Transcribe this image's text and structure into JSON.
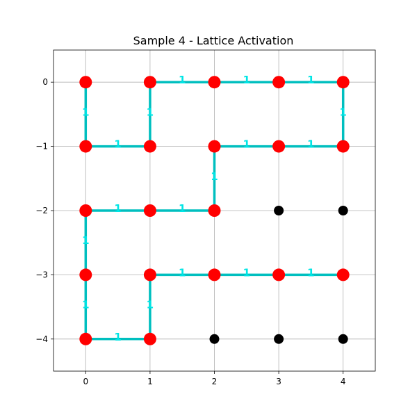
{
  "title": "Sample 4 - Lattice Activation",
  "x_ticks": [
    "0",
    "1",
    "2",
    "3",
    "4"
  ],
  "y_ticks": [
    "0",
    "−1",
    "−2",
    "−3",
    "−4"
  ],
  "x_tick_values": [
    0,
    1,
    2,
    3,
    4
  ],
  "y_tick_values": [
    0,
    -1,
    -2,
    -3,
    -4
  ],
  "xlim": [
    -0.5,
    4.5
  ],
  "ylim": [
    -4.5,
    0.5
  ],
  "grid": true,
  "colors": {
    "active_node": "#ff0000",
    "inactive_node": "#000000",
    "edge": "#00bfbf",
    "edge_label": "#00e5e5"
  },
  "nodes": [
    {
      "x": 0,
      "y": 0,
      "active": true
    },
    {
      "x": 1,
      "y": 0,
      "active": true
    },
    {
      "x": 2,
      "y": 0,
      "active": true
    },
    {
      "x": 3,
      "y": 0,
      "active": true
    },
    {
      "x": 4,
      "y": 0,
      "active": true
    },
    {
      "x": 0,
      "y": -1,
      "active": true
    },
    {
      "x": 1,
      "y": -1,
      "active": true
    },
    {
      "x": 2,
      "y": -1,
      "active": true
    },
    {
      "x": 3,
      "y": -1,
      "active": true
    },
    {
      "x": 4,
      "y": -1,
      "active": true
    },
    {
      "x": 0,
      "y": -2,
      "active": true
    },
    {
      "x": 1,
      "y": -2,
      "active": true
    },
    {
      "x": 2,
      "y": -2,
      "active": true
    },
    {
      "x": 3,
      "y": -2,
      "active": false
    },
    {
      "x": 4,
      "y": -2,
      "active": false
    },
    {
      "x": 0,
      "y": -3,
      "active": true
    },
    {
      "x": 1,
      "y": -3,
      "active": true
    },
    {
      "x": 2,
      "y": -3,
      "active": true
    },
    {
      "x": 3,
      "y": -3,
      "active": true
    },
    {
      "x": 4,
      "y": -3,
      "active": true
    },
    {
      "x": 0,
      "y": -4,
      "active": true
    },
    {
      "x": 1,
      "y": -4,
      "active": true
    },
    {
      "x": 2,
      "y": -4,
      "active": false
    },
    {
      "x": 3,
      "y": -4,
      "active": false
    },
    {
      "x": 4,
      "y": -4,
      "active": false
    }
  ],
  "edges": [
    {
      "from": [
        0,
        0
      ],
      "to": [
        0,
        -1
      ],
      "label": "1"
    },
    {
      "from": [
        0,
        -1
      ],
      "to": [
        1,
        -1
      ],
      "label": "1"
    },
    {
      "from": [
        1,
        -1
      ],
      "to": [
        1,
        0
      ],
      "label": "1"
    },
    {
      "from": [
        1,
        0
      ],
      "to": [
        2,
        0
      ],
      "label": "1"
    },
    {
      "from": [
        2,
        0
      ],
      "to": [
        3,
        0
      ],
      "label": "1"
    },
    {
      "from": [
        3,
        0
      ],
      "to": [
        4,
        0
      ],
      "label": "1"
    },
    {
      "from": [
        4,
        0
      ],
      "to": [
        4,
        -1
      ],
      "label": "1"
    },
    {
      "from": [
        4,
        -1
      ],
      "to": [
        3,
        -1
      ],
      "label": "1"
    },
    {
      "from": [
        3,
        -1
      ],
      "to": [
        2,
        -1
      ],
      "label": "1"
    },
    {
      "from": [
        2,
        -1
      ],
      "to": [
        2,
        -2
      ],
      "label": "1"
    },
    {
      "from": [
        2,
        -2
      ],
      "to": [
        1,
        -2
      ],
      "label": "1"
    },
    {
      "from": [
        1,
        -2
      ],
      "to": [
        0,
        -2
      ],
      "label": "1"
    },
    {
      "from": [
        0,
        -2
      ],
      "to": [
        0,
        -3
      ],
      "label": "1"
    },
    {
      "from": [
        0,
        -3
      ],
      "to": [
        0,
        -4
      ],
      "label": "1"
    },
    {
      "from": [
        0,
        -4
      ],
      "to": [
        1,
        -4
      ],
      "label": "1"
    },
    {
      "from": [
        1,
        -4
      ],
      "to": [
        1,
        -3
      ],
      "label": "1"
    },
    {
      "from": [
        1,
        -3
      ],
      "to": [
        2,
        -3
      ],
      "label": "1"
    },
    {
      "from": [
        2,
        -3
      ],
      "to": [
        3,
        -3
      ],
      "label": "1"
    },
    {
      "from": [
        3,
        -3
      ],
      "to": [
        4,
        -3
      ],
      "label": "1"
    }
  ]
}
